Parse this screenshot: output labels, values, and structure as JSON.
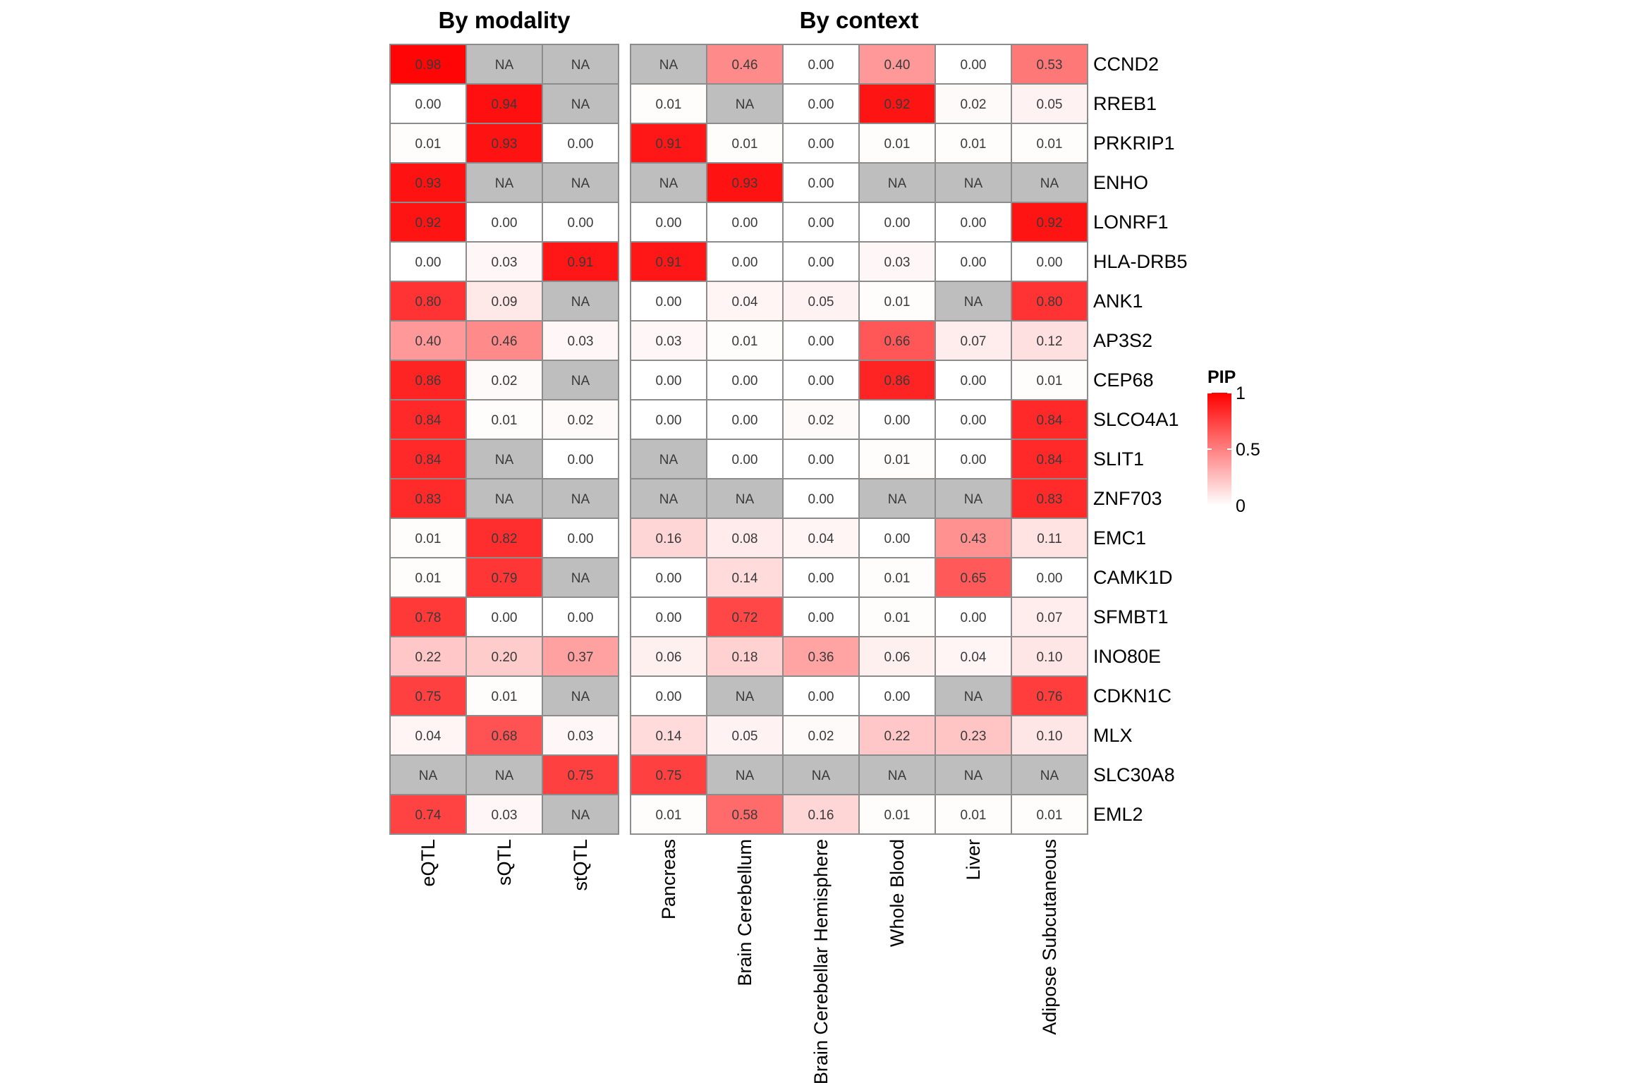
{
  "chart_data": [
    {
      "type": "heatmap",
      "title": "By modality",
      "columns": [
        "eQTL",
        "sQTL",
        "stQTL"
      ],
      "rows": [
        "CCND2",
        "RREB1",
        "PRKRIP1",
        "ENHO",
        "LONRF1",
        "HLA-DRB5",
        "ANK1",
        "AP3S2",
        "CEP68",
        "SLCO4A1",
        "SLIT1",
        "ZNF703",
        "EMC1",
        "CAMK1D",
        "SFMBT1",
        "INO80E",
        "CDKN1C",
        "MLX",
        "SLC30A8",
        "EML2"
      ],
      "values": [
        [
          0.98,
          null,
          null
        ],
        [
          0.0,
          0.94,
          null
        ],
        [
          0.01,
          0.93,
          0.0
        ],
        [
          0.93,
          null,
          null
        ],
        [
          0.92,
          0.0,
          0.0
        ],
        [
          0.0,
          0.03,
          0.91
        ],
        [
          0.8,
          0.09,
          null
        ],
        [
          0.4,
          0.46,
          0.03
        ],
        [
          0.86,
          0.02,
          null
        ],
        [
          0.84,
          0.01,
          0.02
        ],
        [
          0.84,
          null,
          0.0
        ],
        [
          0.83,
          null,
          null
        ],
        [
          0.01,
          0.82,
          0.0
        ],
        [
          0.01,
          0.79,
          null
        ],
        [
          0.78,
          0.0,
          0.0
        ],
        [
          0.22,
          0.2,
          0.37
        ],
        [
          0.75,
          0.01,
          null
        ],
        [
          0.04,
          0.68,
          0.03
        ],
        [
          null,
          null,
          0.75
        ],
        [
          0.74,
          0.03,
          null
        ]
      ]
    },
    {
      "type": "heatmap",
      "title": "By context",
      "columns": [
        "Pancreas",
        "Brain Cerebellum",
        "Brain Cerebellar Hemisphere",
        "Whole Blood",
        "Liver",
        "Adipose Subcutaneous"
      ],
      "rows": [
        "CCND2",
        "RREB1",
        "PRKRIP1",
        "ENHO",
        "LONRF1",
        "HLA-DRB5",
        "ANK1",
        "AP3S2",
        "CEP68",
        "SLCO4A1",
        "SLIT1",
        "ZNF703",
        "EMC1",
        "CAMK1D",
        "SFMBT1",
        "INO80E",
        "CDKN1C",
        "MLX",
        "SLC30A8",
        "EML2"
      ],
      "values": [
        [
          null,
          0.46,
          0.0,
          0.4,
          0.0,
          0.53
        ],
        [
          0.01,
          null,
          0.0,
          0.92,
          0.02,
          0.05
        ],
        [
          0.91,
          0.01,
          0.0,
          0.01,
          0.01,
          0.01
        ],
        [
          null,
          0.93,
          0.0,
          null,
          null,
          null
        ],
        [
          0.0,
          0.0,
          0.0,
          0.0,
          0.0,
          0.92
        ],
        [
          0.91,
          0.0,
          0.0,
          0.03,
          0.0,
          0.0
        ],
        [
          0.0,
          0.04,
          0.05,
          0.01,
          null,
          0.8
        ],
        [
          0.03,
          0.01,
          0.0,
          0.66,
          0.07,
          0.12
        ],
        [
          0.0,
          0.0,
          0.0,
          0.86,
          0.0,
          0.01
        ],
        [
          0.0,
          0.0,
          0.02,
          0.0,
          0.0,
          0.84
        ],
        [
          null,
          0.0,
          0.0,
          0.01,
          0.0,
          0.84
        ],
        [
          null,
          null,
          0.0,
          null,
          null,
          0.83
        ],
        [
          0.16,
          0.08,
          0.04,
          0.0,
          0.43,
          0.11
        ],
        [
          0.0,
          0.14,
          0.0,
          0.01,
          0.65,
          0.0
        ],
        [
          0.0,
          0.72,
          0.0,
          0.01,
          0.0,
          0.07
        ],
        [
          0.06,
          0.18,
          0.36,
          0.06,
          0.04,
          0.1
        ],
        [
          0.0,
          null,
          0.0,
          0.0,
          null,
          0.76
        ],
        [
          0.14,
          0.05,
          0.02,
          0.22,
          0.23,
          0.1
        ],
        [
          0.75,
          null,
          null,
          null,
          null,
          null
        ],
        [
          0.01,
          0.58,
          0.16,
          0.01,
          0.01,
          0.01
        ]
      ]
    }
  ],
  "na_label": "NA",
  "legend": {
    "title": "PIP",
    "ticks": [
      {
        "value": 1,
        "label": "1"
      },
      {
        "value": 0.5,
        "label": "0.5"
      },
      {
        "value": 0,
        "label": "0"
      }
    ],
    "range": [
      0,
      1
    ]
  },
  "colors": {
    "low": "#ffffff",
    "high": "#ff0000",
    "na": "#bebebe",
    "cell_border": "#8c8c8c"
  }
}
